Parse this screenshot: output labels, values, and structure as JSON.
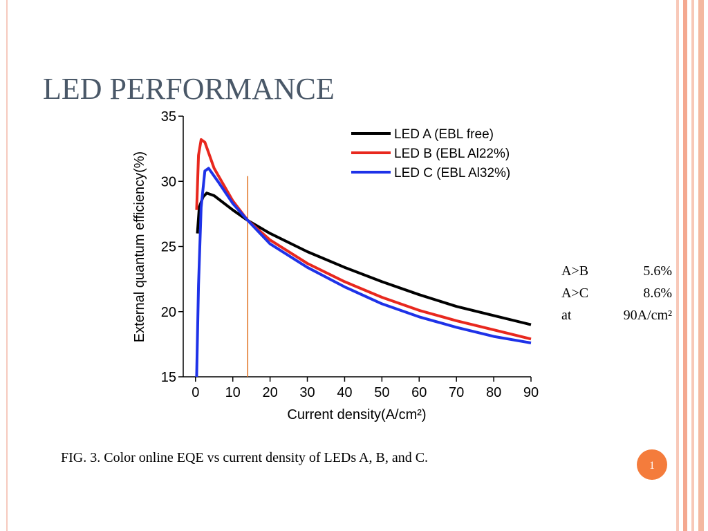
{
  "title": "LED PERFORMANCE",
  "chart_data": {
    "type": "line",
    "xlabel": "Current density(A/cm²)",
    "ylabel": "External quantum efficiency(%)",
    "xlim": [
      -3.3,
      90
    ],
    "xticks": [
      0,
      10,
      20,
      30,
      40,
      50,
      60,
      70,
      80,
      90
    ],
    "ylim": [
      15,
      35
    ],
    "yticks": [
      15,
      20,
      25,
      30,
      35
    ],
    "legend": "upper right",
    "series": [
      {
        "name": "LED A (EBL free)",
        "color": "#000000",
        "x": [
          0.5,
          1,
          2,
          3,
          5,
          10,
          14,
          20,
          30,
          40,
          50,
          60,
          70,
          80,
          90
        ],
        "values": [
          26,
          28,
          28.8,
          29.1,
          28.9,
          27.8,
          27,
          26,
          24.6,
          23.4,
          22.3,
          21.3,
          20.4,
          19.7,
          19.0
        ]
      },
      {
        "name": "LED B (EBL Al22%)",
        "color": "#e8281e",
        "x": [
          0.3,
          0.8,
          1.5,
          2.5,
          5,
          10,
          14,
          20,
          30,
          40,
          50,
          60,
          70,
          80,
          90
        ],
        "values": [
          27.8,
          32,
          33.2,
          33,
          31,
          28.5,
          27,
          25.5,
          23.7,
          22.3,
          21.1,
          20.1,
          19.3,
          18.6,
          17.9
        ]
      },
      {
        "name": "LED C (EBL Al32%)",
        "color": "#1e32e8",
        "x": [
          0.3,
          0.8,
          1.5,
          2.5,
          3.5,
          6,
          10,
          14,
          20,
          30,
          40,
          50,
          60,
          70,
          80,
          90
        ],
        "values": [
          15,
          22,
          28,
          30.8,
          31,
          30,
          28.3,
          27,
          25.2,
          23.4,
          21.9,
          20.6,
          19.6,
          18.8,
          18.1,
          17.6
        ]
      }
    ],
    "marker_line": {
      "x": 14,
      "y": [
        15,
        30.4
      ],
      "color": "#e07020"
    }
  },
  "notes": [
    [
      "A>B",
      "5.6%"
    ],
    [
      "A>C",
      "8.6%"
    ],
    [
      "at",
      "90A/cm²"
    ]
  ],
  "caption": "FIG. 3. Color online EQE vs current density of LEDs A, B, and C.",
  "page_number": "1"
}
